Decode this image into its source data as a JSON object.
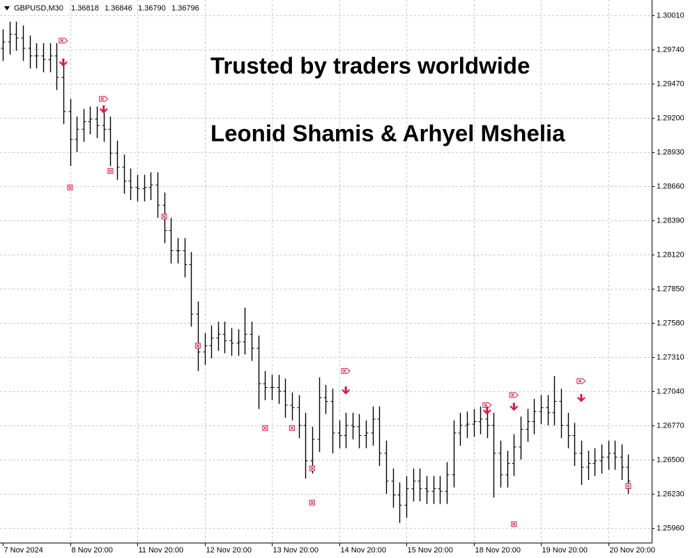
{
  "chart_data": {
    "type": "ohlc",
    "symbol": "GBPUSD,M30",
    "quote": [
      1.36818,
      1.36846,
      {
        "value": 1.3679,
        "label": "1.36790"
      },
      1.36796
    ],
    "annotations": [
      "Trusted by traders worldwide",
      "Leonid Shamis & Arhyel Mshelia"
    ],
    "color": "#000000",
    "signal_color": "#dc143c",
    "grid": true,
    "categories": [
      "7 Nov 2024",
      null,
      null,
      null,
      null,
      null,
      null,
      null,
      null,
      null,
      "8 Nov 20:00",
      null,
      null,
      null,
      null,
      null,
      null,
      null,
      null,
      null,
      "11 Nov 20:00",
      null,
      null,
      null,
      null,
      null,
      null,
      null,
      null,
      null,
      "12 Nov 20:00",
      null,
      null,
      null,
      null,
      null,
      null,
      null,
      null,
      null,
      "13 Nov 20:00",
      null,
      null,
      null,
      null,
      null,
      null,
      null,
      null,
      null,
      "14 Nov 20:00",
      null,
      null,
      null,
      null,
      null,
      null,
      null,
      null,
      null,
      "15 Nov 20:00",
      null,
      null,
      null,
      null,
      null,
      null,
      null,
      null,
      null,
      "18 Nov 20:00",
      null,
      null,
      null,
      null,
      null,
      null,
      null,
      null,
      null,
      "19 Nov 20:00",
      null,
      null,
      null,
      null,
      null,
      null,
      null,
      null,
      null,
      "20 Nov 20:00",
      null,
      null,
      null
    ],
    "open": [
      1.2975,
      1.298,
      1.2986,
      1.2983,
      1.2975,
      1.2969,
      1.2969,
      1.2966,
      1.2969,
      1.2952,
      1.2925,
      1.2903,
      1.2911,
      1.2917,
      1.2919,
      1.2914,
      1.2911,
      1.2892,
      1.2881,
      1.287,
      1.2865,
      1.2864,
      1.2865,
      1.2867,
      1.2851,
      1.2831,
      1.2815,
      1.2815,
      1.2804,
      1.2765,
      1.2735,
      1.274,
      1.2746,
      1.2749,
      1.2744,
      1.2742,
      1.2743,
      1.2749,
      1.2738,
      1.271,
      1.2707,
      1.2707,
      1.2704,
      1.2693,
      1.2691,
      1.2677,
      1.2649,
      1.2666,
      1.2699,
      1.2696,
      1.2671,
      1.2669,
      1.2677,
      1.2676,
      1.2669,
      1.2671,
      1.2682,
      1.2655,
      1.2633,
      1.2622,
      1.2614,
      1.2627,
      1.2633,
      1.2627,
      1.2625,
      1.2627,
      1.2625,
      1.2638,
      1.2671,
      1.2677,
      1.2678,
      1.268,
      1.2682,
      1.2677,
      1.2655,
      1.2638,
      1.2647,
      1.266,
      1.2674,
      1.268,
      1.2688,
      1.2691,
      1.2687,
      1.2696,
      1.2677,
      1.2669,
      1.2655,
      1.2644,
      1.2647,
      1.2649,
      1.2652,
      1.2655,
      1.2652,
      1.2644
    ],
    "high": [
      1.299,
      1.2996,
      1.2996,
      1.2993,
      1.2985,
      1.2979,
      1.2979,
      1.2979,
      1.2979,
      1.2962,
      1.2935,
      1.2921,
      1.2927,
      1.2929,
      1.2929,
      1.2924,
      1.2921,
      1.2902,
      1.2891,
      1.288,
      1.2875,
      1.2875,
      1.2877,
      1.2877,
      1.2861,
      1.2841,
      1.2825,
      1.2825,
      1.2814,
      1.2775,
      1.275,
      1.2756,
      1.2759,
      1.2759,
      1.2754,
      1.2753,
      1.277,
      1.2759,
      1.2748,
      1.272,
      1.2717,
      1.2717,
      1.2714,
      1.2703,
      1.2701,
      1.2687,
      1.2676,
      1.2715,
      1.2709,
      1.2706,
      1.2681,
      1.2687,
      1.2687,
      1.2686,
      1.2681,
      1.2692,
      1.2692,
      1.2665,
      1.2643,
      1.2632,
      1.2637,
      1.2643,
      1.2643,
      1.2637,
      1.2637,
      1.2637,
      1.2648,
      1.2681,
      1.2687,
      1.2688,
      1.269,
      1.2692,
      1.2692,
      1.2687,
      1.2665,
      1.2657,
      1.267,
      1.2684,
      1.269,
      1.2698,
      1.2701,
      1.2701,
      1.2716,
      1.2706,
      1.2687,
      1.2679,
      1.2665,
      1.2657,
      1.2659,
      1.2662,
      1.2665,
      1.2665,
      1.2662,
      1.2654
    ],
    "low": [
      1.2965,
      1.297,
      1.2973,
      1.2965,
      1.2959,
      1.2959,
      1.2956,
      1.2956,
      1.2942,
      1.2915,
      1.2882,
      1.2893,
      1.2901,
      1.2907,
      1.2904,
      1.2901,
      1.2882,
      1.2871,
      1.286,
      1.2855,
      1.2854,
      1.2854,
      1.2855,
      1.2841,
      1.2821,
      1.2805,
      1.2805,
      1.2794,
      1.2755,
      1.272,
      1.2725,
      1.273,
      1.2736,
      1.2734,
      1.2732,
      1.2732,
      1.2733,
      1.2728,
      1.269,
      1.2697,
      1.2697,
      1.2694,
      1.2683,
      1.2681,
      1.2667,
      1.2635,
      1.2639,
      1.2656,
      1.2686,
      1.2655,
      1.2659,
      1.2659,
      1.2666,
      1.2659,
      1.2659,
      1.2661,
      1.2645,
      1.2623,
      1.2612,
      1.26,
      1.2604,
      1.2617,
      1.2617,
      1.2615,
      1.2615,
      1.2615,
      1.2615,
      1.2628,
      1.2661,
      1.2667,
      1.2668,
      1.267,
      1.2667,
      1.262,
      1.2628,
      1.2628,
      1.2637,
      1.265,
      1.2664,
      1.267,
      1.2678,
      1.2677,
      1.2677,
      1.2667,
      1.2659,
      1.2645,
      1.263,
      1.2634,
      1.2637,
      1.2639,
      1.2642,
      1.2642,
      1.2634,
      1.2623
    ],
    "close": [
      1.298,
      1.2986,
      1.2983,
      1.2975,
      1.2969,
      1.2969,
      1.2966,
      1.2969,
      1.2952,
      1.2925,
      1.2903,
      1.2911,
      1.2917,
      1.2919,
      1.2914,
      1.2911,
      1.2892,
      1.2881,
      1.287,
      1.2865,
      1.2864,
      1.2865,
      1.2867,
      1.2851,
      1.2831,
      1.2815,
      1.2815,
      1.2804,
      1.2765,
      1.2735,
      1.274,
      1.2746,
      1.2749,
      1.2744,
      1.2742,
      1.2743,
      1.2749,
      1.2738,
      1.271,
      1.2707,
      1.2707,
      1.2704,
      1.2693,
      1.2691,
      1.2677,
      1.2649,
      1.2666,
      1.2699,
      1.2696,
      1.2671,
      1.2669,
      1.2677,
      1.2676,
      1.2669,
      1.2671,
      1.2682,
      1.2655,
      1.2633,
      1.2622,
      1.2614,
      1.2627,
      1.2633,
      1.2627,
      1.2625,
      1.2627,
      1.2625,
      1.2638,
      1.2671,
      1.2677,
      1.2678,
      1.268,
      1.2682,
      1.2677,
      1.2655,
      1.2638,
      1.2647,
      1.266,
      1.2674,
      1.268,
      1.2688,
      1.2691,
      1.2687,
      1.2696,
      1.2677,
      1.2669,
      1.2655,
      1.2644,
      1.2647,
      1.2649,
      1.2652,
      1.2655,
      1.2652,
      1.2644,
      1.2633
    ],
    "entries": {
      "x": [
        9,
        15,
        51,
        72,
        76,
        86
      ],
      "values": [
        1.2981,
        1.2935,
        1.272,
        1.2693,
        1.2701,
        1.2712
      ]
    },
    "sell_arrows": {
      "x": [
        9,
        15,
        51,
        72,
        76,
        86
      ],
      "values": [
        1.2963,
        1.2926,
        1.2704,
        1.2688,
        1.2691,
        1.2698
      ]
    },
    "exits": {
      "x": [
        10,
        16,
        24,
        29,
        39,
        43,
        46,
        46,
        76,
        93
      ],
      "values": [
        1.2865,
        1.2878,
        1.2842,
        1.274,
        1.2675,
        1.2675,
        1.2643,
        1.2616,
        1.2599,
        1.2629
      ]
    },
    "ylim": [
      1.25844,
      1.30131
    ],
    "yticks": [
      {
        "value": 1.3001,
        "label": "1.30010"
      },
      {
        "value": 1.2974,
        "label": "1.29740"
      },
      {
        "value": 1.2947,
        "label": "1.29470"
      },
      {
        "value": 1.292,
        "label": "1.29200"
      },
      {
        "value": 1.2893,
        "label": "1.28930"
      },
      {
        "value": 1.2866,
        "label": "1.28660"
      },
      {
        "value": 1.2839,
        "label": "1.28390"
      },
      {
        "value": 1.2812,
        "label": "1.28120"
      },
      {
        "value": 1.2785,
        "label": "1.27850"
      },
      {
        "value": 1.2758,
        "label": "1.27580"
      },
      {
        "value": 1.2731,
        "label": "1.27310"
      },
      {
        "value": 1.2704,
        "label": "1.27040"
      },
      {
        "value": 1.2677,
        "label": "1.26770"
      },
      {
        "value": 1.265,
        "label": "1.26500"
      },
      {
        "value": 1.2623,
        "label": "1.26230"
      },
      {
        "value": 1.2596,
        "label": "1.25960"
      }
    ]
  }
}
